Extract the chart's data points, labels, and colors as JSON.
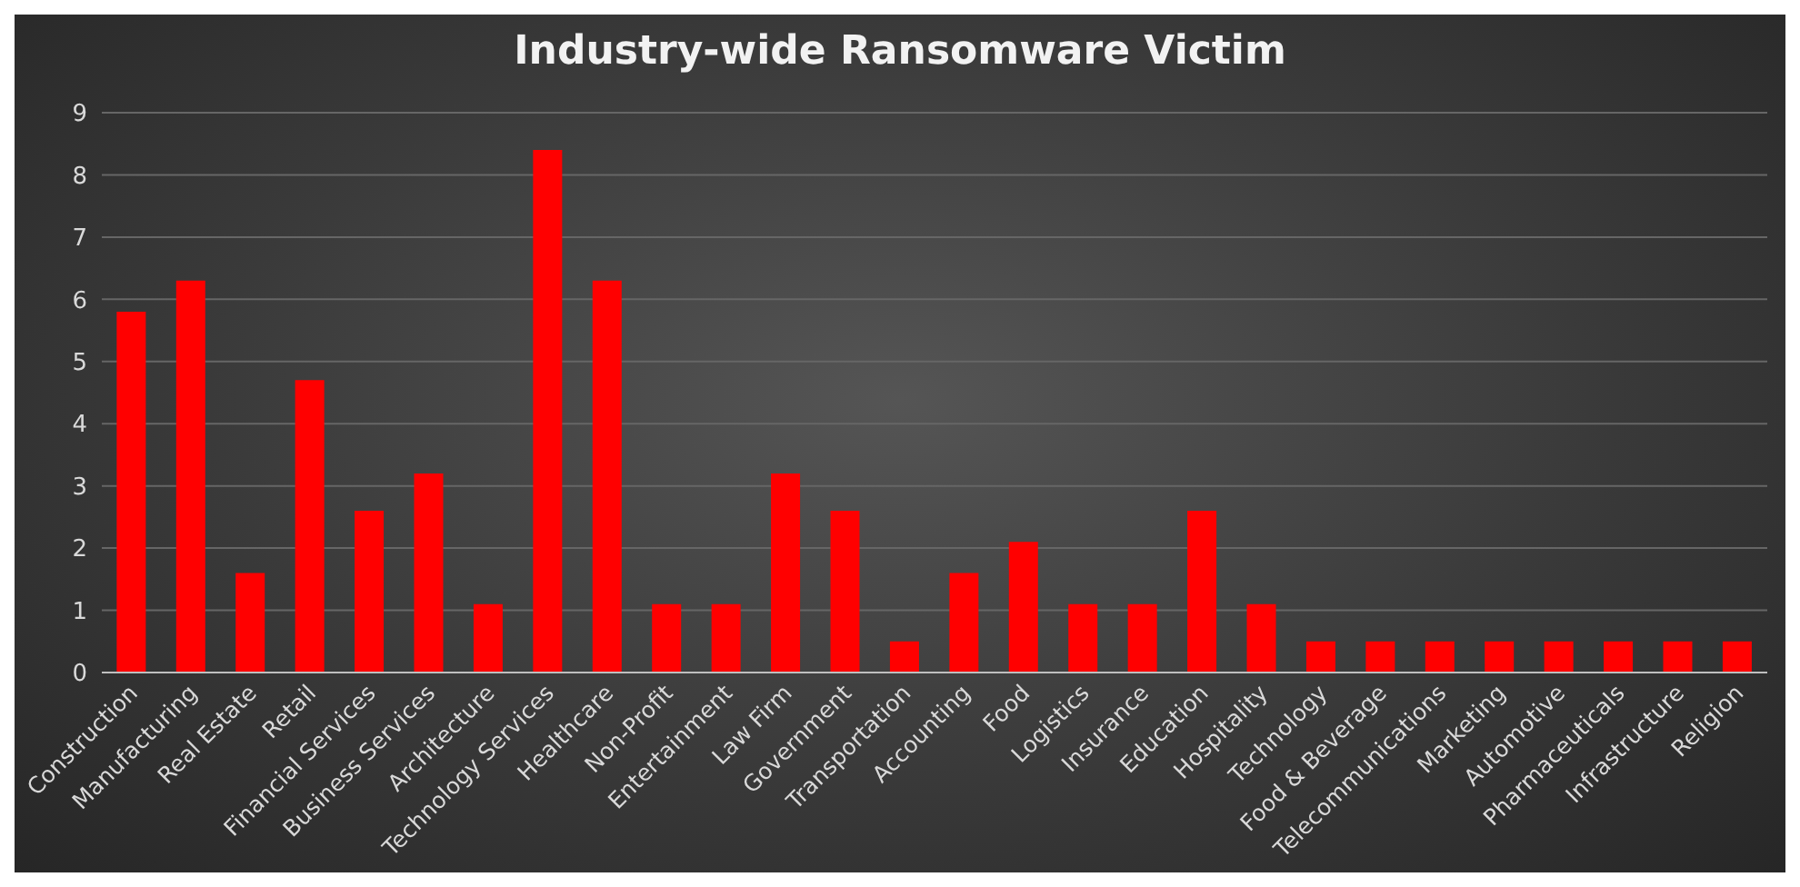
{
  "chart_data": {
    "type": "bar",
    "title": "Industry-wide Ransomware Victim",
    "categories": [
      "Construction",
      "Manufacturing",
      "Real Estate",
      "Retail",
      "Financial Services",
      "Business Services",
      "Architecture",
      "Technology Services",
      "Healthcare",
      "Non-Profit",
      "Entertainment",
      "Law Firm",
      "Government",
      "Transportation",
      "Accounting",
      "Food",
      "Logistics",
      "Insurance",
      "Education",
      "Hospitality",
      "Technology",
      "Food & Beverage",
      "Telecommunications",
      "Marketing",
      "Automotive",
      "Pharmaceuticals",
      "Infrastructure",
      "Religion"
    ],
    "values": [
      5.8,
      6.3,
      1.6,
      4.7,
      2.6,
      3.2,
      1.1,
      8.4,
      6.3,
      1.1,
      1.1,
      3.2,
      2.6,
      0.5,
      1.6,
      2.1,
      1.1,
      1.1,
      2.6,
      1.1,
      0.5,
      0.5,
      0.5,
      0.5,
      0.5,
      0.5,
      0.5,
      0.5
    ],
    "color": "#ff0000",
    "ylim": [
      0,
      9
    ],
    "yticks": [
      0,
      1,
      2,
      3,
      4,
      5,
      6,
      7,
      8,
      9
    ],
    "grid": "y",
    "legend": false
  }
}
